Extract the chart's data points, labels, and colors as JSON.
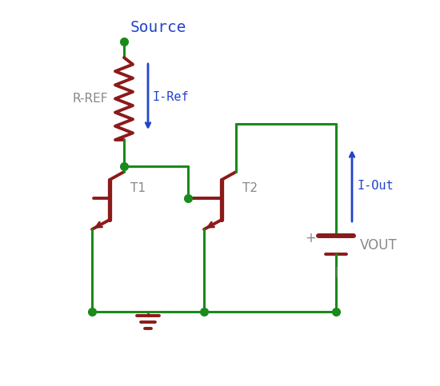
{
  "bg_color": "#ffffff",
  "wire_color": "#1a8a1a",
  "component_color": "#8b1a1a",
  "text_blue": "#2244cc",
  "text_gray": "#888888",
  "source_text": "Source",
  "rref_text": "R-REF",
  "iref_text": "I-Ref",
  "iout_text": "I-Out",
  "vout_text": "VOUT",
  "t1_text": "T1",
  "t2_text": "T2",
  "plus_text": "+"
}
